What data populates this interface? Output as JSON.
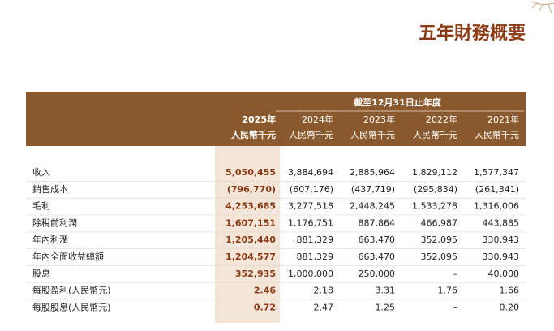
{
  "header": {
    "title": "五年財務概要"
  },
  "table": {
    "period_label": "截至12月31日止年度",
    "columns": [
      {
        "year": "2025年",
        "unit": "人民幣千元"
      },
      {
        "year": "2024年",
        "unit": "人民幣千元"
      },
      {
        "year": "2023年",
        "unit": "人民幣千元"
      },
      {
        "year": "2022年",
        "unit": "人民幣千元"
      },
      {
        "year": "2021年",
        "unit": "人民幣千元"
      }
    ],
    "rows": [
      {
        "label": "收入",
        "values": [
          "5,050,455",
          "3,884,694",
          "2,885,964",
          "1,829,112",
          "1,577,347"
        ]
      },
      {
        "label": "銷售成本",
        "values": [
          "(796,770)",
          "(607,176)",
          "(437,719)",
          "(295,834)",
          "(261,341)"
        ]
      },
      {
        "label": "毛利",
        "values": [
          "4,253,685",
          "3,277,518",
          "2,448,245",
          "1,533,278",
          "1,316,006"
        ]
      },
      {
        "label": "除稅前利潤",
        "values": [
          "1,607,151",
          "1,176,751",
          "887,864",
          "466,987",
          "443,885"
        ]
      },
      {
        "label": "年內利潤",
        "values": [
          "1,205,440",
          "881,329",
          "663,470",
          "352,095",
          "330,943"
        ]
      },
      {
        "label": "年內全面收益總額",
        "values": [
          "1,204,577",
          "881,329",
          "663,470",
          "352,095",
          "330,943"
        ]
      },
      {
        "label": "股息",
        "values": [
          "352,935",
          "1,000,000",
          "250,000",
          "–",
          "40,000"
        ]
      },
      {
        "label": "每股盈利(人民幣元)",
        "values": [
          "2.46",
          "2.18",
          "3.31",
          "1.76",
          "1.66"
        ]
      },
      {
        "label": "每股股息(人民幣元)",
        "values": [
          "0.72",
          "2.47",
          "1.25",
          "–",
          "0.20"
        ]
      }
    ]
  }
}
